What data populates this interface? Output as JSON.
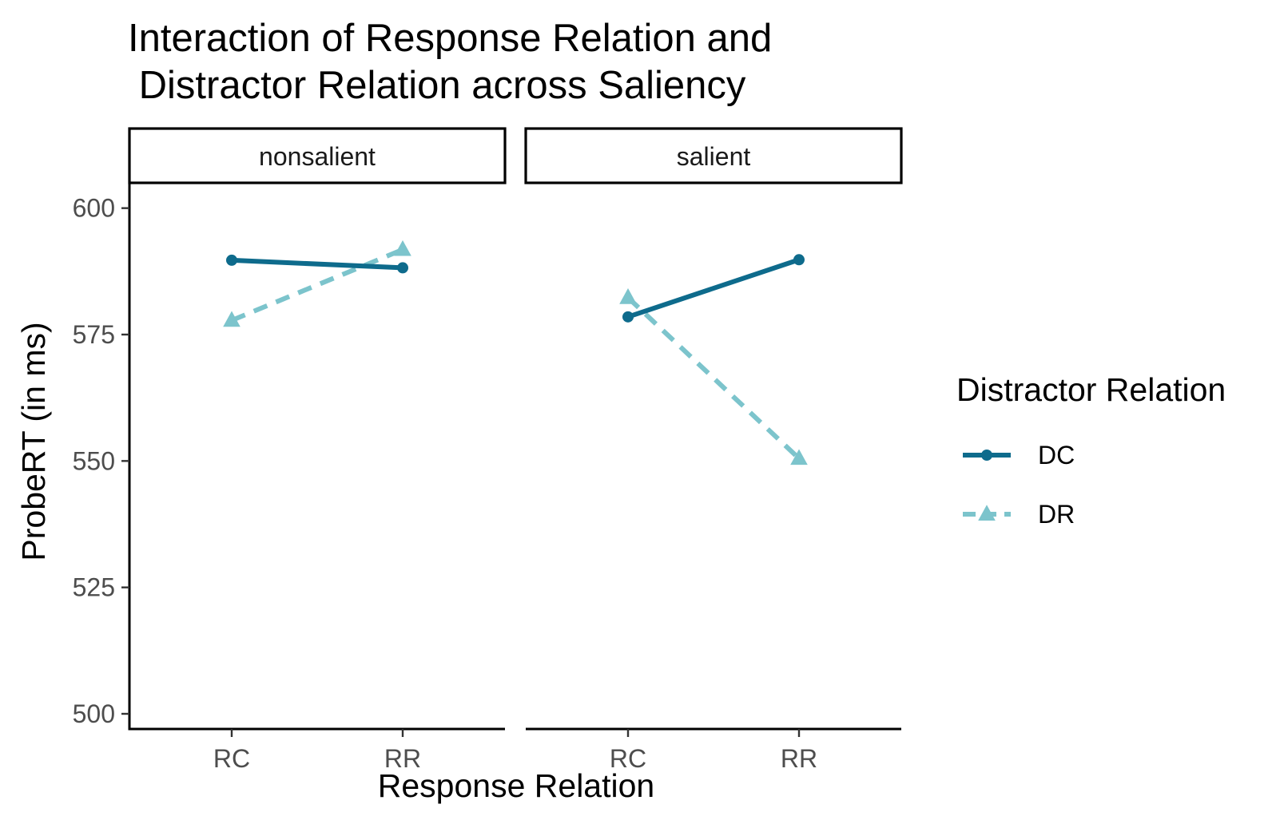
{
  "chart_data": {
    "type": "line",
    "title_lines": [
      "Interaction of Response Relation and",
      " Distractor Relation across Saliency"
    ],
    "xlabel": "Response Relation",
    "ylabel": "ProbeRT (in ms)",
    "ylim": [
      497,
      605
    ],
    "y_ticks": [
      500,
      525,
      550,
      575,
      600
    ],
    "categories": [
      "RC",
      "RR"
    ],
    "legend": {
      "title": "Distractor Relation",
      "position": "right"
    },
    "grid": false,
    "facets": [
      {
        "label": "nonsalient",
        "series": [
          {
            "name": "DC",
            "values": [
              589.7,
              588.2
            ]
          },
          {
            "name": "DR",
            "values": [
              577.8,
              591.8
            ]
          }
        ]
      },
      {
        "label": "salient",
        "series": [
          {
            "name": "DC",
            "values": [
              578.5,
              589.8
            ]
          },
          {
            "name": "DR",
            "values": [
              582.3,
              550.5
            ]
          }
        ]
      }
    ],
    "series_styles": [
      {
        "name": "DC",
        "color": "#0e6b8c",
        "line": "solid",
        "marker": "circle"
      },
      {
        "name": "DR",
        "color": "#7cc4cc",
        "line": "dashed",
        "marker": "triangle"
      }
    ]
  }
}
